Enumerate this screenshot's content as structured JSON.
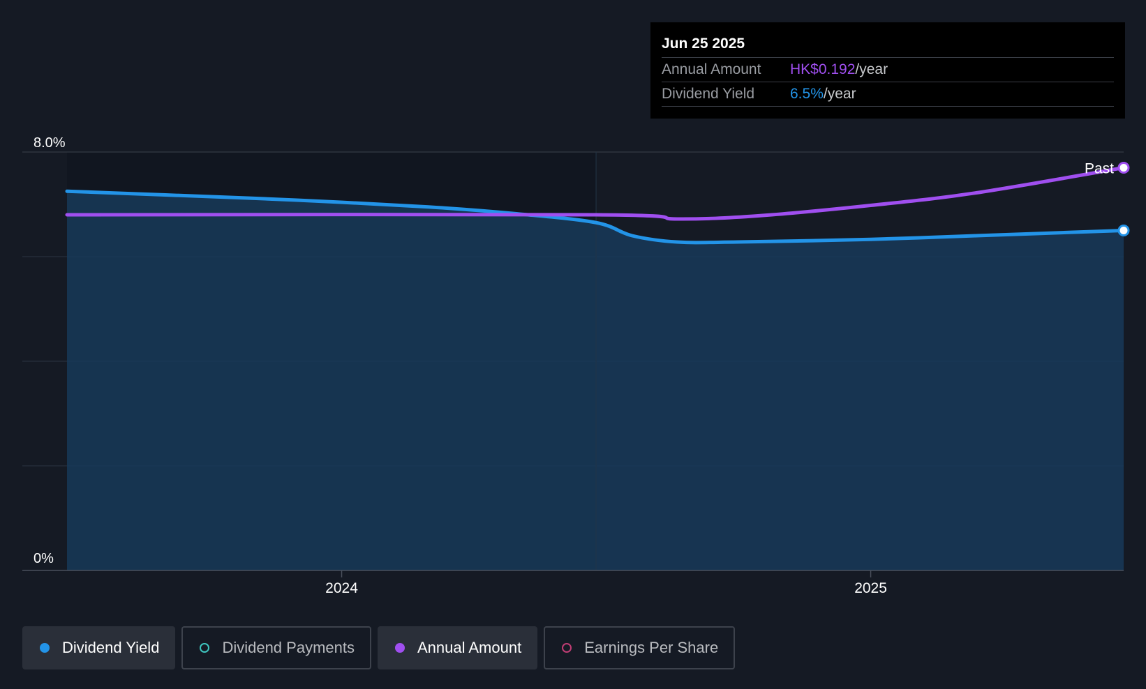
{
  "colors": {
    "background": "#151a24",
    "yield": "#2394e8",
    "annual": "#a04ff0",
    "payments": "#3fc6c0",
    "eps": "#c03d74",
    "grid": "#2c3442"
  },
  "tooltip": {
    "date": "Jun 25 2025",
    "rows": [
      {
        "label": "Annual Amount",
        "value": "HK$0.192",
        "unit": "/year",
        "color": "#a04ff0"
      },
      {
        "label": "Dividend Yield",
        "value": "6.5%",
        "unit": "/year",
        "color": "#2394e8"
      }
    ]
  },
  "legend": [
    {
      "label": "Dividend Yield",
      "active": true,
      "color": "#2394e8",
      "filled": true
    },
    {
      "label": "Dividend Payments",
      "active": false,
      "color": "#3fc6c0",
      "filled": false
    },
    {
      "label": "Annual Amount",
      "active": true,
      "color": "#a04ff0",
      "filled": true
    },
    {
      "label": "Earnings Per Share",
      "active": false,
      "color": "#c03d74",
      "filled": false
    }
  ],
  "chart_data": {
    "type": "line",
    "y_ticks": [
      "8.0%",
      "0%"
    ],
    "x_ticks": [
      {
        "label": "2024",
        "date": "2024-01-01"
      },
      {
        "label": "2025",
        "date": "2025-01-01"
      }
    ],
    "ylim": [
      0,
      8.0
    ],
    "x_range": [
      "2023-06-25",
      "2025-06-25"
    ],
    "past_marker": {
      "label": "Past",
      "date": "2024-06-25"
    },
    "grid": true,
    "series": [
      {
        "name": "Dividend Yield",
        "color": "#2394e8",
        "area": true,
        "points": [
          [
            "2023-06-25",
            7.25
          ],
          [
            "2023-09-01",
            7.18
          ],
          [
            "2023-12-01",
            7.08
          ],
          [
            "2024-03-01",
            6.95
          ],
          [
            "2024-05-01",
            6.82
          ],
          [
            "2024-06-25",
            6.65
          ],
          [
            "2024-07-20",
            6.4
          ],
          [
            "2024-08-20",
            6.28
          ],
          [
            "2024-10-01",
            6.28
          ],
          [
            "2025-01-01",
            6.33
          ],
          [
            "2025-03-15",
            6.4
          ],
          [
            "2025-06-25",
            6.5
          ]
        ]
      },
      {
        "name": "Annual Amount",
        "color": "#a04ff0",
        "area": false,
        "points": [
          [
            "2023-06-25",
            6.8
          ],
          [
            "2024-06-25",
            6.8
          ],
          [
            "2024-08-20",
            6.72
          ],
          [
            "2024-10-15",
            6.78
          ],
          [
            "2025-01-01",
            6.98
          ],
          [
            "2025-03-15",
            7.22
          ],
          [
            "2025-06-25",
            7.7
          ]
        ]
      }
    ]
  }
}
